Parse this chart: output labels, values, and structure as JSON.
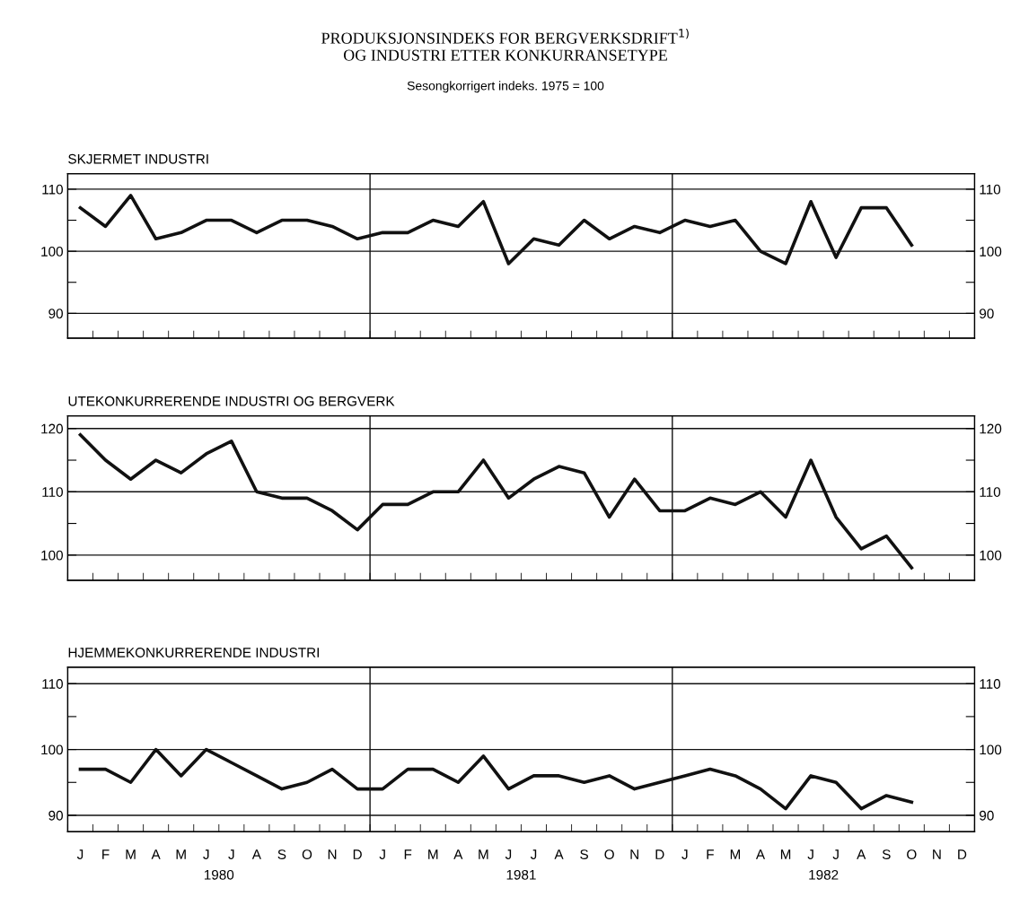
{
  "chart_data": [
    {
      "type": "line",
      "title": "SKJERMET INDUSTRI",
      "annotations": [
        "PRODUKSJONSINDEKS FOR BERGVERKSDRIFT$^{1)}$\nOG INDUSTRI ETTER KONKURRANSETYPE",
        "Sesongkorrigert indeks. 1975 = 100"
      ],
      "categories": [
        null,
        null,
        null,
        null,
        null,
        null,
        null,
        null,
        null,
        null,
        null,
        null,
        null,
        null,
        null,
        null,
        null,
        null,
        null,
        null,
        null,
        null,
        null,
        null,
        null,
        null,
        null,
        null,
        null,
        null,
        null,
        null,
        null,
        null,
        null,
        null
      ],
      "series": [
        {
          "color": "#111111",
          "values": [
            107,
            104,
            109,
            102,
            103,
            105,
            105,
            103,
            105,
            105,
            104,
            102,
            103,
            103,
            105,
            104,
            108,
            98,
            102,
            101,
            105,
            102,
            104,
            103,
            105,
            104,
            105,
            100,
            98,
            108,
            99,
            107,
            107,
            101,
            null,
            null
          ]
        }
      ],
      "ylim": [
        86,
        112.5
      ],
      "yticks": [
        90,
        {
          "value": 95,
          "label": null
        },
        100,
        {
          "value": 105,
          "label": null
        },
        110
      ],
      "y2lim": [
        86,
        112.5
      ],
      "y2ticks": [
        90,
        {
          "value": 95,
          "label": null
        },
        100,
        {
          "value": 105,
          "label": null
        },
        110
      ],
      "grid": "y",
      "tick_labels": "y",
      "line_style": "solid",
      "marker": "none"
    },
    {
      "type": "line",
      "title": "UTEKONKURRERENDE INDUSTRI OG BERGVERK",
      "categories": [
        null,
        null,
        null,
        null,
        null,
        null,
        null,
        null,
        null,
        null,
        null,
        null,
        null,
        null,
        null,
        null,
        null,
        null,
        null,
        null,
        null,
        null,
        null,
        null,
        null,
        null,
        null,
        null,
        null,
        null,
        null,
        null,
        null,
        null,
        null,
        null
      ],
      "series": [
        {
          "color": "#111111",
          "values": [
            119,
            115,
            112,
            115,
            113,
            116,
            118,
            110,
            109,
            109,
            107,
            104,
            108,
            108,
            110,
            110,
            115,
            109,
            112,
            114,
            113,
            106,
            112,
            107,
            107,
            109,
            108,
            110,
            106,
            115,
            106,
            101,
            103,
            98,
            null,
            null
          ]
        }
      ],
      "ylim": [
        96,
        122
      ],
      "yticks": [
        100,
        {
          "value": 105,
          "label": null
        },
        110,
        {
          "value": 115,
          "label": null
        },
        120
      ],
      "y2lim": [
        96,
        122
      ],
      "y2ticks": [
        100,
        {
          "value": 105,
          "label": null
        },
        110,
        {
          "value": 115,
          "label": null
        },
        120
      ],
      "grid": "y",
      "tick_labels": "y",
      "line_style": "solid",
      "marker": "none"
    },
    {
      "type": "line",
      "title": "HJEMMEKONKURRERENDE INDUSTRI",
      "annotations": [
        "1980",
        "1981",
        "1982"
      ],
      "categories": [
        "J",
        "F",
        "M",
        "A",
        "M",
        "J",
        "J",
        "A",
        "S",
        "O",
        "N",
        "D",
        "J",
        "F",
        "M",
        "A",
        "M",
        "J",
        "J",
        "A",
        "S",
        "O",
        "N",
        "D",
        "J",
        "F",
        "M",
        "A",
        "M",
        "J",
        "J",
        "A",
        "S",
        "O",
        "N",
        "D"
      ],
      "series": [
        {
          "color": "#111111",
          "values": [
            97,
            97,
            95,
            100,
            96,
            100,
            98,
            96,
            94,
            95,
            97,
            94,
            94,
            97,
            97,
            95,
            99,
            94,
            96,
            96,
            95,
            96,
            94,
            95,
            96,
            97,
            96,
            94,
            91,
            96,
            95,
            91,
            93,
            92,
            null,
            null
          ]
        }
      ],
      "ylim": [
        87.5,
        112.5
      ],
      "yticks": [
        90,
        {
          "value": 95,
          "label": null
        },
        100,
        {
          "value": 105,
          "label": null
        },
        110
      ],
      "y2lim": [
        87.5,
        112.5
      ],
      "y2ticks": [
        90,
        {
          "value": 95,
          "label": null
        },
        100,
        {
          "value": 105,
          "label": null
        },
        110
      ],
      "grid": "y",
      "line_style": "solid",
      "marker": "none"
    }
  ]
}
